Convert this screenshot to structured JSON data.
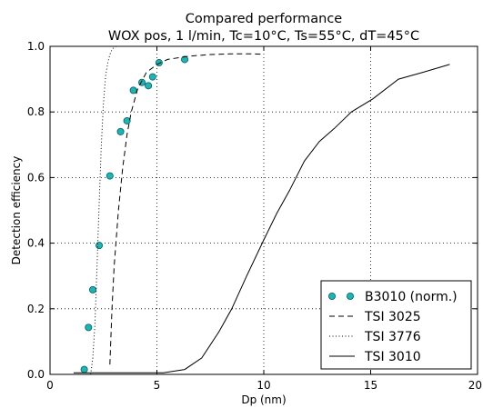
{
  "chart_data": {
    "type": "line",
    "title_line1": "Compared performance",
    "title_line2": "WOX pos, 1 l/min, Tc=10°C, Ts=55°C, dT=45°C",
    "xlabel": "Dp (nm)",
    "ylabel": "Detection efficiency",
    "xlim": [
      0,
      20
    ],
    "ylim": [
      0,
      1.0
    ],
    "x_ticks": [
      "0",
      "5",
      "10",
      "15",
      "20"
    ],
    "y_ticks": [
      "0.0",
      "0.2",
      "0.4",
      "0.6",
      "0.8",
      "1.0"
    ],
    "grid": true,
    "legend_position": "bottom-right",
    "colors": {
      "marker": "#1ab5b5",
      "marker_edge": "#0b5e5e",
      "line": "#000000"
    },
    "series": [
      {
        "name": "B3010 (norm.)",
        "style": "markers",
        "x": [
          1.6,
          1.8,
          2.0,
          2.3,
          2.8,
          3.3,
          3.6,
          3.9,
          4.3,
          4.6,
          4.8,
          5.1,
          6.3
        ],
        "y": [
          0.015,
          0.143,
          0.258,
          0.393,
          0.605,
          0.74,
          0.773,
          0.866,
          0.89,
          0.88,
          0.907,
          0.95,
          0.96
        ]
      },
      {
        "name": "TSI 3025",
        "style": "dashed",
        "x": [
          2.8,
          2.9,
          3.0,
          3.2,
          3.4,
          3.6,
          3.8,
          4.1,
          4.5,
          5.0,
          5.5,
          6.5,
          7.5,
          8.5,
          9.5,
          10.0
        ],
        "y": [
          0.03,
          0.2,
          0.33,
          0.5,
          0.63,
          0.73,
          0.8,
          0.87,
          0.92,
          0.945,
          0.96,
          0.97,
          0.975,
          0.977,
          0.977,
          0.976
        ]
      },
      {
        "name": "TSI 3776",
        "style": "dotted",
        "x": [
          1.9,
          2.0,
          2.1,
          2.2,
          2.3,
          2.4,
          2.5,
          2.6,
          2.7,
          2.8,
          2.9,
          3.0,
          3.1
        ],
        "y": [
          0.0,
          0.05,
          0.15,
          0.33,
          0.52,
          0.7,
          0.83,
          0.91,
          0.95,
          0.975,
          0.99,
          0.997,
          1.0
        ]
      },
      {
        "name": "TSI 3010",
        "style": "solid",
        "x": [
          1.1,
          2.5,
          4.0,
          5.3,
          6.3,
          7.1,
          7.9,
          8.5,
          9.2,
          10.0,
          10.6,
          11.2,
          11.9,
          12.6,
          13.3,
          14.1,
          15.1,
          16.3,
          17.4,
          18.7
        ],
        "y": [
          0.005,
          0.005,
          0.005,
          0.005,
          0.015,
          0.05,
          0.13,
          0.2,
          0.3,
          0.41,
          0.49,
          0.56,
          0.65,
          0.71,
          0.75,
          0.8,
          0.84,
          0.9,
          0.92,
          0.945
        ]
      }
    ]
  }
}
